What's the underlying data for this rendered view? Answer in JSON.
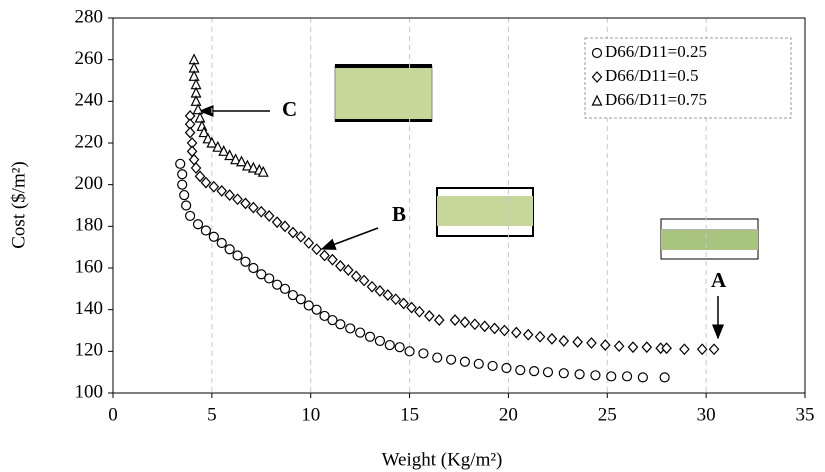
{
  "chart_data": {
    "type": "scatter",
    "x_label": "Weight (Kg/m²)",
    "y_label": "Cost ($/m²)",
    "xlim": [
      0,
      35
    ],
    "xticks": [
      0,
      5,
      10,
      15,
      20,
      25,
      30,
      35
    ],
    "ylim": [
      100,
      280
    ],
    "yticks": [
      100,
      120,
      140,
      160,
      180,
      200,
      220,
      240,
      260,
      280
    ],
    "grid": true,
    "legend": "upper right",
    "annotations": [
      "A",
      "B",
      "C"
    ],
    "series": [
      {
        "name": "D66/D11=0.25",
        "marker": "circle",
        "color": "#000000",
        "x": [
          3.4,
          3.5,
          3.5,
          3.6,
          3.7,
          3.9,
          4.3,
          4.7,
          5.1,
          5.5,
          5.9,
          6.3,
          6.7,
          7.1,
          7.5,
          7.9,
          8.3,
          8.7,
          9.1,
          9.5,
          9.9,
          10.3,
          10.7,
          11.1,
          11.5,
          12,
          12.5,
          13,
          13.5,
          14,
          14.5,
          15,
          15.7,
          16.4,
          17.1,
          17.8,
          18.5,
          19.2,
          19.9,
          20.6,
          21.3,
          22,
          22.8,
          23.6,
          24.4,
          25.2,
          26,
          26.8,
          27.9
        ],
        "y": [
          210,
          205,
          200,
          195,
          190,
          185,
          181,
          178,
          175,
          172,
          169,
          166,
          163,
          160,
          157,
          155,
          152,
          150,
          147,
          145,
          142,
          140,
          137,
          135,
          133,
          131,
          129,
          127,
          125,
          123,
          122,
          120,
          119,
          117,
          116,
          115,
          114,
          113,
          112,
          111,
          110.5,
          110,
          109.5,
          109,
          108.5,
          108,
          108,
          107.5,
          107.5
        ]
      },
      {
        "name": "D66/D11=0.5",
        "marker": "diamond",
        "color": "#000000",
        "x": [
          3.9,
          3.9,
          3.9,
          4,
          4,
          4.1,
          4.2,
          4.4,
          4.7,
          5.1,
          5.5,
          5.9,
          6.3,
          6.7,
          7.1,
          7.5,
          7.9,
          8.3,
          8.7,
          9.1,
          9.5,
          9.9,
          10.3,
          10.7,
          11.1,
          11.5,
          11.9,
          12.3,
          12.7,
          13.1,
          13.5,
          13.9,
          14.3,
          14.7,
          15.1,
          15.5,
          16,
          16.5,
          17.3,
          17.8,
          18.3,
          18.8,
          19.3,
          19.8,
          20.4,
          21,
          21.6,
          22.2,
          22.8,
          23.5,
          24.2,
          24.9,
          25.6,
          26.3,
          27,
          27.7,
          28,
          28.9,
          29.8,
          30.4
        ],
        "y": [
          233,
          229,
          225,
          220,
          216,
          212,
          208,
          204,
          201,
          199,
          197,
          195,
          193,
          191,
          189,
          187,
          185,
          182,
          180,
          177,
          175,
          172,
          169,
          166,
          164,
          161,
          159,
          156,
          154,
          151,
          149,
          147,
          145,
          143,
          141,
          139,
          137,
          135,
          135,
          134,
          133,
          132,
          131,
          130,
          129,
          128,
          127,
          126,
          125,
          124.5,
          124,
          123,
          122.5,
          122,
          122,
          121.5,
          121.5,
          121,
          121,
          121
        ]
      },
      {
        "name": "D66/D11=0.75",
        "marker": "triangle",
        "color": "#000000",
        "x": [
          4.1,
          4.1,
          4.1,
          4.2,
          4.2,
          4.2,
          4.3,
          4.4,
          4.5,
          4.6,
          4.8,
          5,
          5.3,
          5.6,
          5.9,
          6.2,
          6.5,
          6.8,
          7.1,
          7.4,
          7.6
        ],
        "y": [
          260,
          256,
          252,
          248,
          244,
          240,
          236,
          232,
          228,
          225,
          222,
          220,
          218,
          216,
          214,
          212,
          211,
          209,
          208,
          207,
          206
        ]
      }
    ]
  }
}
